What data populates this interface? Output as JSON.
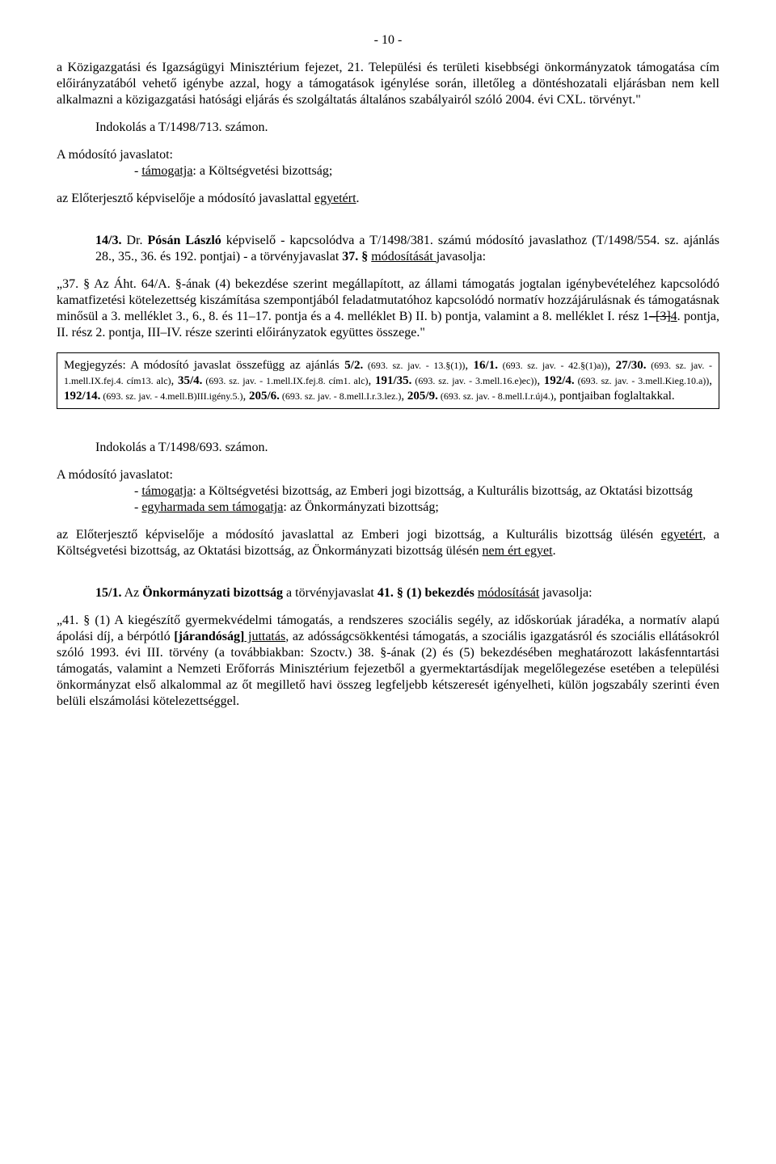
{
  "page_number": "- 10 -",
  "p1": "a Közigazgatási és Igazságügyi Minisztérium fejezet, 21. Települési és területi kisebbségi önkormányzatok támogatása cím előirányzatából vehető igénybe azzal, hogy a támogatások igénylése során, illetőleg a döntéshozatali eljárásban nem kell alkalmazni a közigazgatási hatósági eljárás és szolgáltatás általános szabályairól szóló 2004. évi CXL. törvényt.\"",
  "indok1": "Indokolás a T/1498/713. számon.",
  "jav_label": "A módosító javaslatot:",
  "jav1_pre": "- ",
  "jav1_u": "támogatja",
  "jav1_post": ": a Költségvetési bizottság;",
  "elo1_pre": "az Előterjesztő képviselője a módosító javaslattal ",
  "elo1_u": "egyetért",
  "elo1_post": ".",
  "s143_num": "14/3.",
  "s143_a": " Dr. ",
  "s143_b": "Pósán László",
  "s143_c": " képviselő - kapcsolódva  a T/1498/381. számú módosító javaslathoz (T/1498/554. sz. ajánlás 28., 35., 36. és 192. pontjai) -  a törvényjavaslat ",
  "s143_d": "37. § ",
  "s143_e": "módosítását ",
  "s143_f": "javasolja:",
  "p37_a": "„37. §  Az Áht. 64/A. §-ának (4) bekezdése szerint megállapított, az állami támogatás jogtalan igénybevételéhez kapcsolódó kamatfizetési kötelezettség kiszámítása szempontjából feladatmutatóhoz kapcsolódó normatív hozzájárulásnak és támogatásnak minősül a 3. melléklet 3., 6., 8. és 11–17. pontja és a 4. melléklet B) II. b) pontja, valamint a 8. melléklet I. rész 1",
  "p37_strike": "–[3]",
  "p37_u": "4",
  "p37_b": ". pontja, II. rész 2. pontja, III–IV. része szerinti előirányzatok együttes összege.\"",
  "box_a": "Megjegyzés: A módosító javaslat összefügg az ajánlás ",
  "box_b": "5/2.",
  "box_c": " (693. sz. jav. - 13.§(1))",
  "box_d": ", ",
  "box_e": "16/1.",
  "box_f": " (693. sz. jav. - 42.§(1)a))",
  "box_g": ", ",
  "box_h": "27/30.",
  "box_i": " (693. sz. jav. - 1.mell.IX.fej.4. cím13. alc)",
  "box_j": ", ",
  "box_k": "35/4.",
  "box_l": " (693. sz. jav. - 1.mell.IX.fej.8. cím1. alc)",
  "box_m": ", ",
  "box_n": "191/35.",
  "box_o": " (693. sz. jav. - 3.mell.16.e)ec))",
  "box_p": ", ",
  "box_q": "192/4.",
  "box_r": " (693. sz. jav. - 3.mell.Kieg.10.a))",
  "box_s": ", ",
  "box_t": "192/14.",
  "box_u": " (693. sz. jav. - 4.mell.B)III.igény.5.)",
  "box_v": ", ",
  "box_w": "205/6.",
  "box_x": " (693. sz. jav. - 8.mell.I.r.3.lez.)",
  "box_y": ", ",
  "box_z": "205/9.",
  "box_aa": " (693. sz. jav. - 8.mell.I.r.új4.)",
  "box_bb": ", pontjaiban foglaltakkal.",
  "indok2": "Indokolás a T/1498/693. számon.",
  "jav2a_pre": "- ",
  "jav2a_u": "támogatja",
  "jav2a_post": ": a Költségvetési bizottság, az Emberi jogi bizottság, a Kulturális bizottság, az Oktatási bizottság",
  "jav2b_pre": "- ",
  "jav2b_u": "egyharmada sem támogatja",
  "jav2b_post": ": az Önkormányzati bizottság;",
  "elo2_a": "az Előterjesztő képviselője a módosító javaslattal az Emberi jogi bizottság, a Kulturális bizottság ülésén ",
  "elo2_u1": "egyetért",
  "elo2_b": ", a Költségvetési bizottság, az Oktatási bizottság, az Önkormányzati bizottság ülésén ",
  "elo2_u2": "nem ért egyet",
  "elo2_c": ".",
  "s151_num": "15/1.",
  "s151_a": " Az ",
  "s151_b": "Önkormányzati bizottság",
  "s151_c": " a törvényjavaslat ",
  "s151_d": "41. § (1) bekezdés ",
  "s151_e": "módosítását",
  "s151_f": " javasolja:",
  "p41_a": "„41. § (1) A kiegészítő gyermekvédelmi támogatás, a rendszeres szociális segély, az időskorúak járadéka, a normatív alapú ápolási díj, a bérpótló ",
  "p41_strike": "[járandóság]",
  "p41_u": " juttatás",
  "p41_b": ", az adósságcsökkentési támogatás, a szociális igazgatásról és szociális ellátásokról szóló 1993. évi III. törvény (a továbbiakban: Szoctv.) 38. §-ának (2) és (5) bekezdésében meghatározott lakásfenntartási támogatás, valamint a Nemzeti Erőforrás Minisztérium fejezetből a gyermektartásdíjak megelőlegezése esetében a települési önkormányzat első alkalommal az őt megillető havi összeg legfeljebb kétszeresét igényelheti, külön jogszabály szerinti éven belüli elszámolási kötelezettséggel."
}
